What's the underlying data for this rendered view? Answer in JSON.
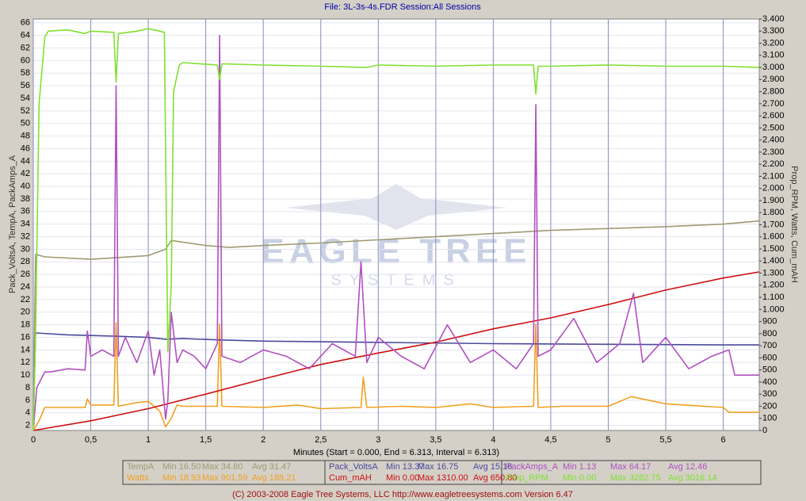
{
  "chart_data": {
    "type": "line",
    "title": "File: 3L-3s-4s.FDR   Session:All Sessions",
    "xlabel": "Minutes (Start = 0.000, End = 6.313, Interval = 6.313)",
    "ylabel": "Pack_VoltsA, TempA, PackAmps_A",
    "y2label": "Prop_RPM, Watts, Cum_mAH",
    "footer": "(C) 2003-2008 Eagle Tree Systems, LLC      http://www.eagletreesystems.com      Version 6.47",
    "watermark": [
      "EAGLE TREE",
      "SYSTEMS"
    ],
    "grid": true,
    "xlim": [
      0,
      6.313
    ],
    "xticks": [
      0,
      {
        "value": 0.5,
        "label": "0,5"
      },
      1,
      {
        "value": 1.5,
        "label": "1,5"
      },
      2,
      {
        "value": 2.5,
        "label": "2,5"
      },
      3,
      {
        "value": 3.5,
        "label": "3,5"
      },
      4,
      {
        "value": 4.5,
        "label": "4,5"
      },
      5,
      {
        "value": 5.5,
        "label": "5,5"
      },
      6
    ],
    "ylim": [
      1.2,
      66.6
    ],
    "yticks": [
      2,
      4,
      6,
      8,
      10,
      12,
      14,
      16,
      18,
      20,
      22,
      24,
      26,
      28,
      30,
      32,
      34,
      36,
      38,
      40,
      42,
      44,
      46,
      48,
      50,
      52,
      54,
      56,
      58,
      60,
      62,
      64,
      66
    ],
    "y2lim": [
      0,
      3400
    ],
    "y2ticks": [
      0,
      100,
      200,
      300,
      400,
      500,
      600,
      700,
      800,
      900,
      {
        "value": 1000,
        "label": "1.000"
      },
      {
        "value": 1100,
        "label": "1.100"
      },
      {
        "value": 1200,
        "label": "1.200"
      },
      {
        "value": 1300,
        "label": "1.300"
      },
      {
        "value": 1400,
        "label": "1.400"
      },
      {
        "value": 1500,
        "label": "1.500"
      },
      {
        "value": 1600,
        "label": "1.600"
      },
      {
        "value": 1700,
        "label": "1.700"
      },
      {
        "value": 1800,
        "label": "1.800"
      },
      {
        "value": 1900,
        "label": "1.900"
      },
      {
        "value": 2000,
        "label": "2.000"
      },
      {
        "value": 2100,
        "label": "2.100"
      },
      {
        "value": 2200,
        "label": "2.200"
      },
      {
        "value": 2300,
        "label": "2.300"
      },
      {
        "value": 2400,
        "label": "2.400"
      },
      {
        "value": 2500,
        "label": "2.500"
      },
      {
        "value": 2600,
        "label": "2.600"
      },
      {
        "value": 2700,
        "label": "2.700"
      },
      {
        "value": 2800,
        "label": "2.800"
      },
      {
        "value": 2900,
        "label": "2.900"
      },
      {
        "value": 3000,
        "label": "3.000"
      },
      {
        "value": 3100,
        "label": "3.100"
      },
      {
        "value": 3200,
        "label": "3.200"
      },
      {
        "value": 3300,
        "label": "3.300"
      },
      {
        "value": 3400,
        "label": "3.400"
      }
    ],
    "series": [
      {
        "name": "TempA",
        "color": "#a09a72",
        "stats": [
          "Min 16.50",
          "Max 34.80",
          "Avg 31.47"
        ],
        "x": [
          0,
          0.02,
          0.1,
          0.5,
          1.0,
          1.15,
          1.2,
          1.5,
          1.7,
          2,
          2.5,
          3,
          3.5,
          4,
          4.5,
          5,
          5.5,
          6,
          6.313
        ],
        "values": [
          2,
          29.2,
          28.8,
          28.4,
          29,
          30,
          31.4,
          30.6,
          30.3,
          30.6,
          31,
          31.5,
          32,
          32.5,
          33,
          33.3,
          33.6,
          34,
          34.5
        ]
      },
      {
        "name": "Watts",
        "color": "#f0a020",
        "axis": "y2",
        "stats": [
          "Min 18.93",
          "Max 901.59",
          "Avg 188.21"
        ],
        "x": [
          0,
          0.05,
          0.1,
          0.45,
          0.47,
          0.5,
          0.7,
          0.72,
          0.74,
          0.9,
          1.0,
          1.1,
          1.15,
          1.2,
          1.25,
          1.3,
          1.6,
          1.62,
          1.64,
          2,
          2.3,
          2.5,
          2.85,
          2.87,
          2.9,
          3.2,
          3.5,
          3.8,
          4.0,
          4.35,
          4.37,
          4.39,
          4.6,
          5,
          5.2,
          5.5,
          6,
          6.05,
          6.313
        ],
        "values": [
          0,
          80,
          190,
          190,
          260,
          210,
          210,
          890,
          200,
          230,
          240,
          160,
          30,
          100,
          210,
          200,
          200,
          880,
          200,
          190,
          210,
          180,
          190,
          440,
          190,
          200,
          190,
          220,
          190,
          200,
          880,
          190,
          200,
          200,
          280,
          220,
          190,
          150,
          150
        ]
      },
      {
        "name": "Pack_VoltsA",
        "color": "#4a4a9a",
        "stats": [
          "Min 13.37",
          "Max 16.75",
          "Avg 15.16"
        ],
        "x": [
          0,
          0.02,
          0.3,
          0.7,
          1.0,
          1.15,
          1.3,
          1.6,
          2,
          3,
          4,
          5,
          6,
          6.313
        ],
        "values": [
          2,
          16.7,
          16.4,
          16.2,
          16,
          15.7,
          15.8,
          15.6,
          15.4,
          15.2,
          15.0,
          14.9,
          14.8,
          14.8
        ]
      },
      {
        "name": "Cum_mAH",
        "color": "#cc1010",
        "axis": "y2",
        "stats": [
          "Min 0.00",
          "Max 1310.00",
          "Avg 650.80"
        ],
        "x": [
          0,
          0.5,
          1,
          1.5,
          2,
          2.5,
          3,
          3.5,
          4,
          4.5,
          5,
          5.5,
          6,
          6.313
        ],
        "values": [
          0,
          80,
          180,
          300,
          425,
          545,
          640,
          730,
          840,
          930,
          1040,
          1160,
          1260,
          1310
        ]
      },
      {
        "name": "PackAmps_A",
        "color": "#b050c0",
        "stats": [
          "Min 1.13",
          "Max 64.17",
          "Avg 12.46"
        ],
        "x": [
          0,
          0.03,
          0.1,
          0.15,
          0.3,
          0.45,
          0.47,
          0.5,
          0.6,
          0.7,
          0.72,
          0.74,
          0.8,
          0.9,
          1.0,
          1.05,
          1.1,
          1.15,
          1.17,
          1.2,
          1.25,
          1.3,
          1.4,
          1.5,
          1.6,
          1.62,
          1.64,
          1.8,
          2.0,
          2.2,
          2.4,
          2.6,
          2.8,
          2.85,
          2.9,
          3.0,
          3.2,
          3.4,
          3.6,
          3.8,
          4.0,
          4.2,
          4.35,
          4.37,
          4.39,
          4.5,
          4.7,
          4.9,
          5.1,
          5.22,
          5.3,
          5.5,
          5.7,
          5.9,
          6.05,
          6.1,
          6.313
        ],
        "values": [
          1.2,
          8,
          10.5,
          10.5,
          11,
          10.8,
          17,
          13,
          14,
          13,
          56,
          13,
          16,
          12,
          17,
          10,
          14,
          3,
          6,
          20,
          12,
          14,
          13,
          11,
          15,
          64,
          13,
          12,
          14,
          13,
          11,
          15,
          13,
          28,
          12,
          16,
          13,
          11,
          18,
          12,
          14,
          11,
          15,
          53,
          13,
          14,
          19,
          12,
          15,
          23,
          12,
          16,
          11,
          13,
          14,
          10,
          10
        ]
      },
      {
        "name": "Prop_RPM",
        "color": "#80e030",
        "axis": "y2",
        "stats": [
          "Min 0.00",
          "Max 3282.75",
          "Avg 3016.14"
        ],
        "x": [
          0,
          0.02,
          0.05,
          0.1,
          0.13,
          0.3,
          0.45,
          0.5,
          0.7,
          0.72,
          0.74,
          0.9,
          1.0,
          1.1,
          1.14,
          1.16,
          1.17,
          1.2,
          1.22,
          1.27,
          1.3,
          1.6,
          1.62,
          1.64,
          2,
          2.5,
          2.9,
          3,
          3.5,
          4,
          4.35,
          4.37,
          4.39,
          4.5,
          5,
          5.5,
          6,
          6.313
        ],
        "values": [
          0,
          800,
          2700,
          3250,
          3300,
          3310,
          3280,
          3300,
          3290,
          2880,
          3280,
          3300,
          3320,
          3300,
          3290,
          1500,
          650,
          1200,
          2800,
          3020,
          3040,
          3020,
          2900,
          3030,
          3020,
          3010,
          3000,
          3020,
          3010,
          3020,
          3020,
          2780,
          3010,
          3010,
          3020,
          3010,
          3010,
          3000
        ]
      }
    ]
  }
}
